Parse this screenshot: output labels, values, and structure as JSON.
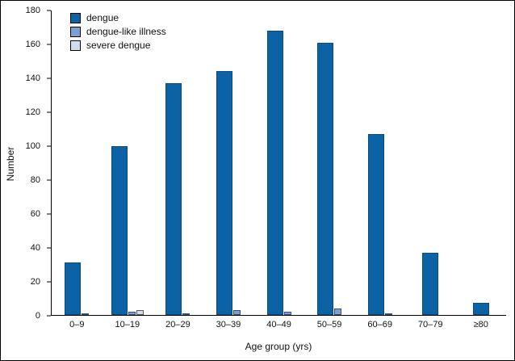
{
  "chart_data": {
    "type": "bar",
    "title": "",
    "xlabel": "Age group (yrs)",
    "ylabel": "Number",
    "ylim": [
      0,
      180
    ],
    "ytick_step": 20,
    "grid": false,
    "legend_position": "top-left-inside",
    "categories": [
      "0–9",
      "10–19",
      "20–29",
      "30–39",
      "40–49",
      "50–59",
      "60–69",
      "70–79",
      "≥80"
    ],
    "series": [
      {
        "key": "dengue",
        "name": "dengue",
        "color": "#0b62a4",
        "border": "#094a80",
        "values": [
          31,
          100,
          137,
          144,
          168,
          161,
          107,
          37,
          7
        ]
      },
      {
        "key": "dengue-like-illness",
        "name": "dengue-like illness",
        "color": "#7e9fd2",
        "border": "#3a4e73",
        "values": [
          1,
          2,
          1,
          3,
          2,
          4,
          1,
          0,
          0
        ]
      },
      {
        "key": "severe-dengue",
        "name": "severe dengue",
        "color": "#d3dcee",
        "border": "#55585e",
        "values": [
          0,
          3,
          0,
          0,
          0,
          0,
          0,
          0,
          0
        ]
      }
    ]
  }
}
